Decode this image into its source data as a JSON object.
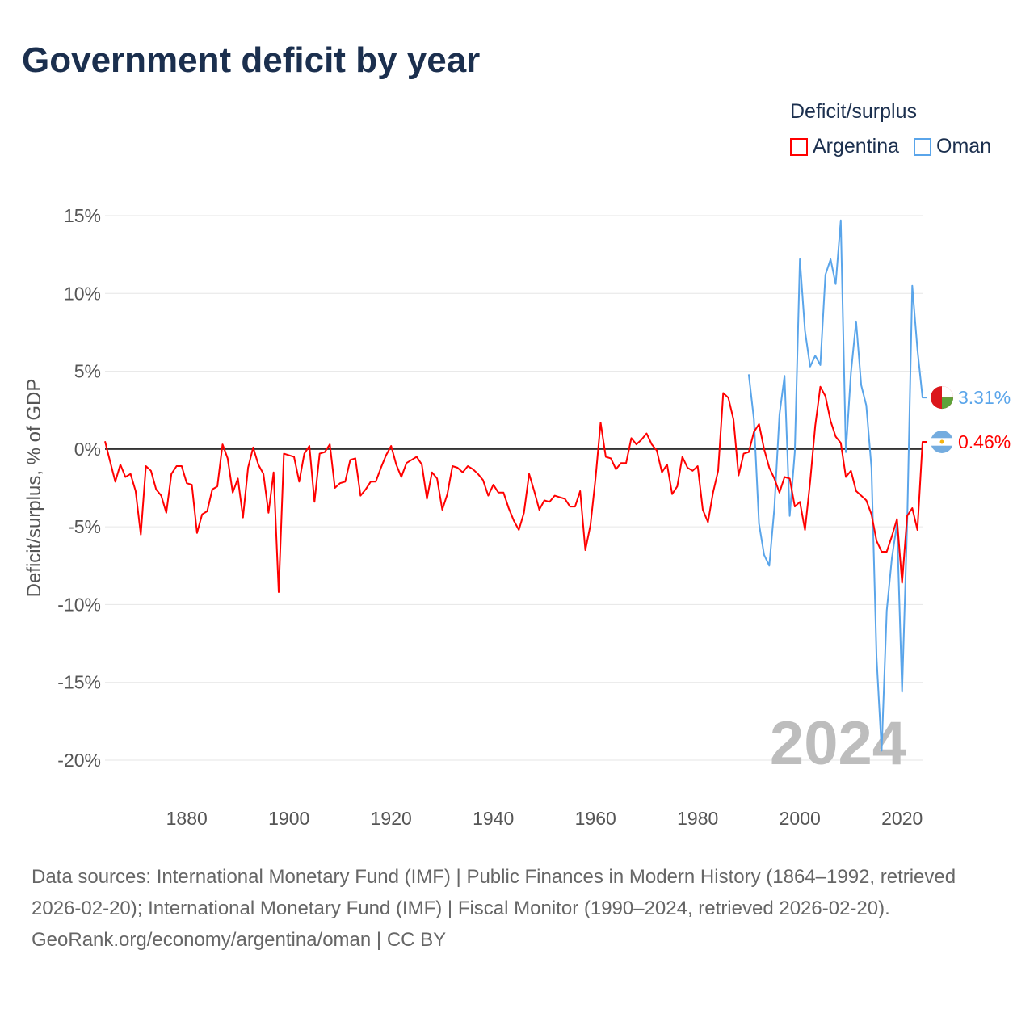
{
  "title": "Government deficit by year",
  "legend": {
    "title": "Deficit/surplus",
    "items": [
      {
        "label": "Argentina",
        "color": "#ff0000"
      },
      {
        "label": "Oman",
        "color": "#5aa5ea"
      }
    ]
  },
  "watermark_year": "2024",
  "footer": {
    "sources": "Data sources: International Monetary Fund (IMF) | Public Finances in Modern History (1864–1992, retrieved 2026-02-20); International Monetary Fund (IMF) | Fiscal Monitor (1990–2024, retrieved 2026-02-20).",
    "credit": "GeoRank.org/economy/argentina/oman | CC BY"
  },
  "chart_data": {
    "type": "line",
    "title": "Government deficit by year",
    "ylabel": "Deficit/surplus, % of GDP",
    "xlabel": "",
    "xlim": [
      1864,
      2024
    ],
    "ylim": [
      -20,
      15
    ],
    "yticks": [
      15,
      10,
      5,
      0,
      -5,
      -10,
      -15,
      -20
    ],
    "ytick_labels": [
      "15%",
      "10%",
      "5%",
      "0%",
      "-5%",
      "-10%",
      "-15%",
      "-20%"
    ],
    "xticks": [
      1880,
      1900,
      1920,
      1940,
      1960,
      1980,
      2000,
      2020
    ],
    "xtick_labels": [
      "1880",
      "1900",
      "1920",
      "1940",
      "1960",
      "1980",
      "2000",
      "2020"
    ],
    "grid": true,
    "legend_position": "top-right",
    "series": [
      {
        "name": "Argentina",
        "color": "#ff0000",
        "end_label": "0.46%",
        "start_year": 1864,
        "values": [
          0.5,
          -0.8,
          -2.1,
          -1.0,
          -1.8,
          -1.6,
          -2.7,
          -5.5,
          -1.1,
          -1.4,
          -2.6,
          -3.0,
          -4.1,
          -1.6,
          -1.1,
          -1.1,
          -2.2,
          -2.3,
          -5.4,
          -4.2,
          -4.0,
          -2.6,
          -2.4,
          0.3,
          -0.6,
          -2.8,
          -1.9,
          -4.4,
          -1.2,
          0.1,
          -1.0,
          -1.6,
          -4.1,
          -1.5,
          -9.2,
          -0.3,
          -0.4,
          -0.5,
          -2.1,
          -0.3,
          0.2,
          -3.4,
          -0.3,
          -0.2,
          0.3,
          -2.5,
          -2.2,
          -2.1,
          -0.7,
          -0.6,
          -3.0,
          -2.6,
          -2.1,
          -2.1,
          -1.2,
          -0.4,
          0.2,
          -1.0,
          -1.8,
          -0.9,
          -0.7,
          -0.5,
          -1.0,
          -3.2,
          -1.5,
          -1.9,
          -3.9,
          -2.9,
          -1.1,
          -1.2,
          -1.5,
          -1.1,
          -1.3,
          -1.6,
          -2.0,
          -3.0,
          -2.3,
          -2.8,
          -2.8,
          -3.8,
          -4.6,
          -5.2,
          -4.1,
          -1.6,
          -2.7,
          -3.9,
          -3.3,
          -3.4,
          -3.0,
          -3.1,
          -3.2,
          -3.7,
          -3.7,
          -2.7,
          -6.5,
          -4.9,
          -1.9,
          1.7,
          -0.5,
          -0.6,
          -1.3,
          -0.9,
          -0.9,
          0.7,
          0.3,
          0.6,
          1.0,
          0.3,
          -0.1,
          -1.5,
          -1.0,
          -2.9,
          -2.4,
          -0.5,
          -1.2,
          -1.4,
          -1.1,
          -3.9,
          -4.7,
          -2.8,
          -1.4,
          3.6,
          3.3,
          1.9,
          -1.7,
          -0.3,
          -0.2,
          1.1,
          1.6,
          0.0,
          -1.2,
          -1.9,
          -2.8,
          -1.8,
          -1.9,
          -3.7,
          -3.4,
          -5.2,
          -2.1,
          1.5,
          4.0,
          3.4,
          1.8,
          0.8,
          0.4,
          -1.8,
          -1.4,
          -2.7,
          -3.0,
          -3.3,
          -4.2,
          -5.9,
          -6.6,
          -6.6,
          -5.6,
          -4.5,
          -8.6,
          -4.3,
          -3.8,
          -5.2,
          0.46
        ]
      },
      {
        "name": "Oman",
        "color": "#5aa5ea",
        "end_label": "3.31%",
        "start_year": 1990,
        "values": [
          4.8,
          1.9,
          -4.8,
          -6.8,
          -7.5,
          -3.8,
          2.2,
          4.7,
          -4.3,
          -0.2,
          12.2,
          7.6,
          5.3,
          6.0,
          5.4,
          11.2,
          12.2,
          10.6,
          14.7,
          -0.2,
          4.9,
          8.2,
          4.1,
          2.8,
          -1.2,
          -13.4,
          -19.4,
          -10.4,
          -7.0,
          -4.8,
          -15.6,
          -4.8,
          10.5,
          6.4,
          3.31
        ]
      }
    ]
  }
}
